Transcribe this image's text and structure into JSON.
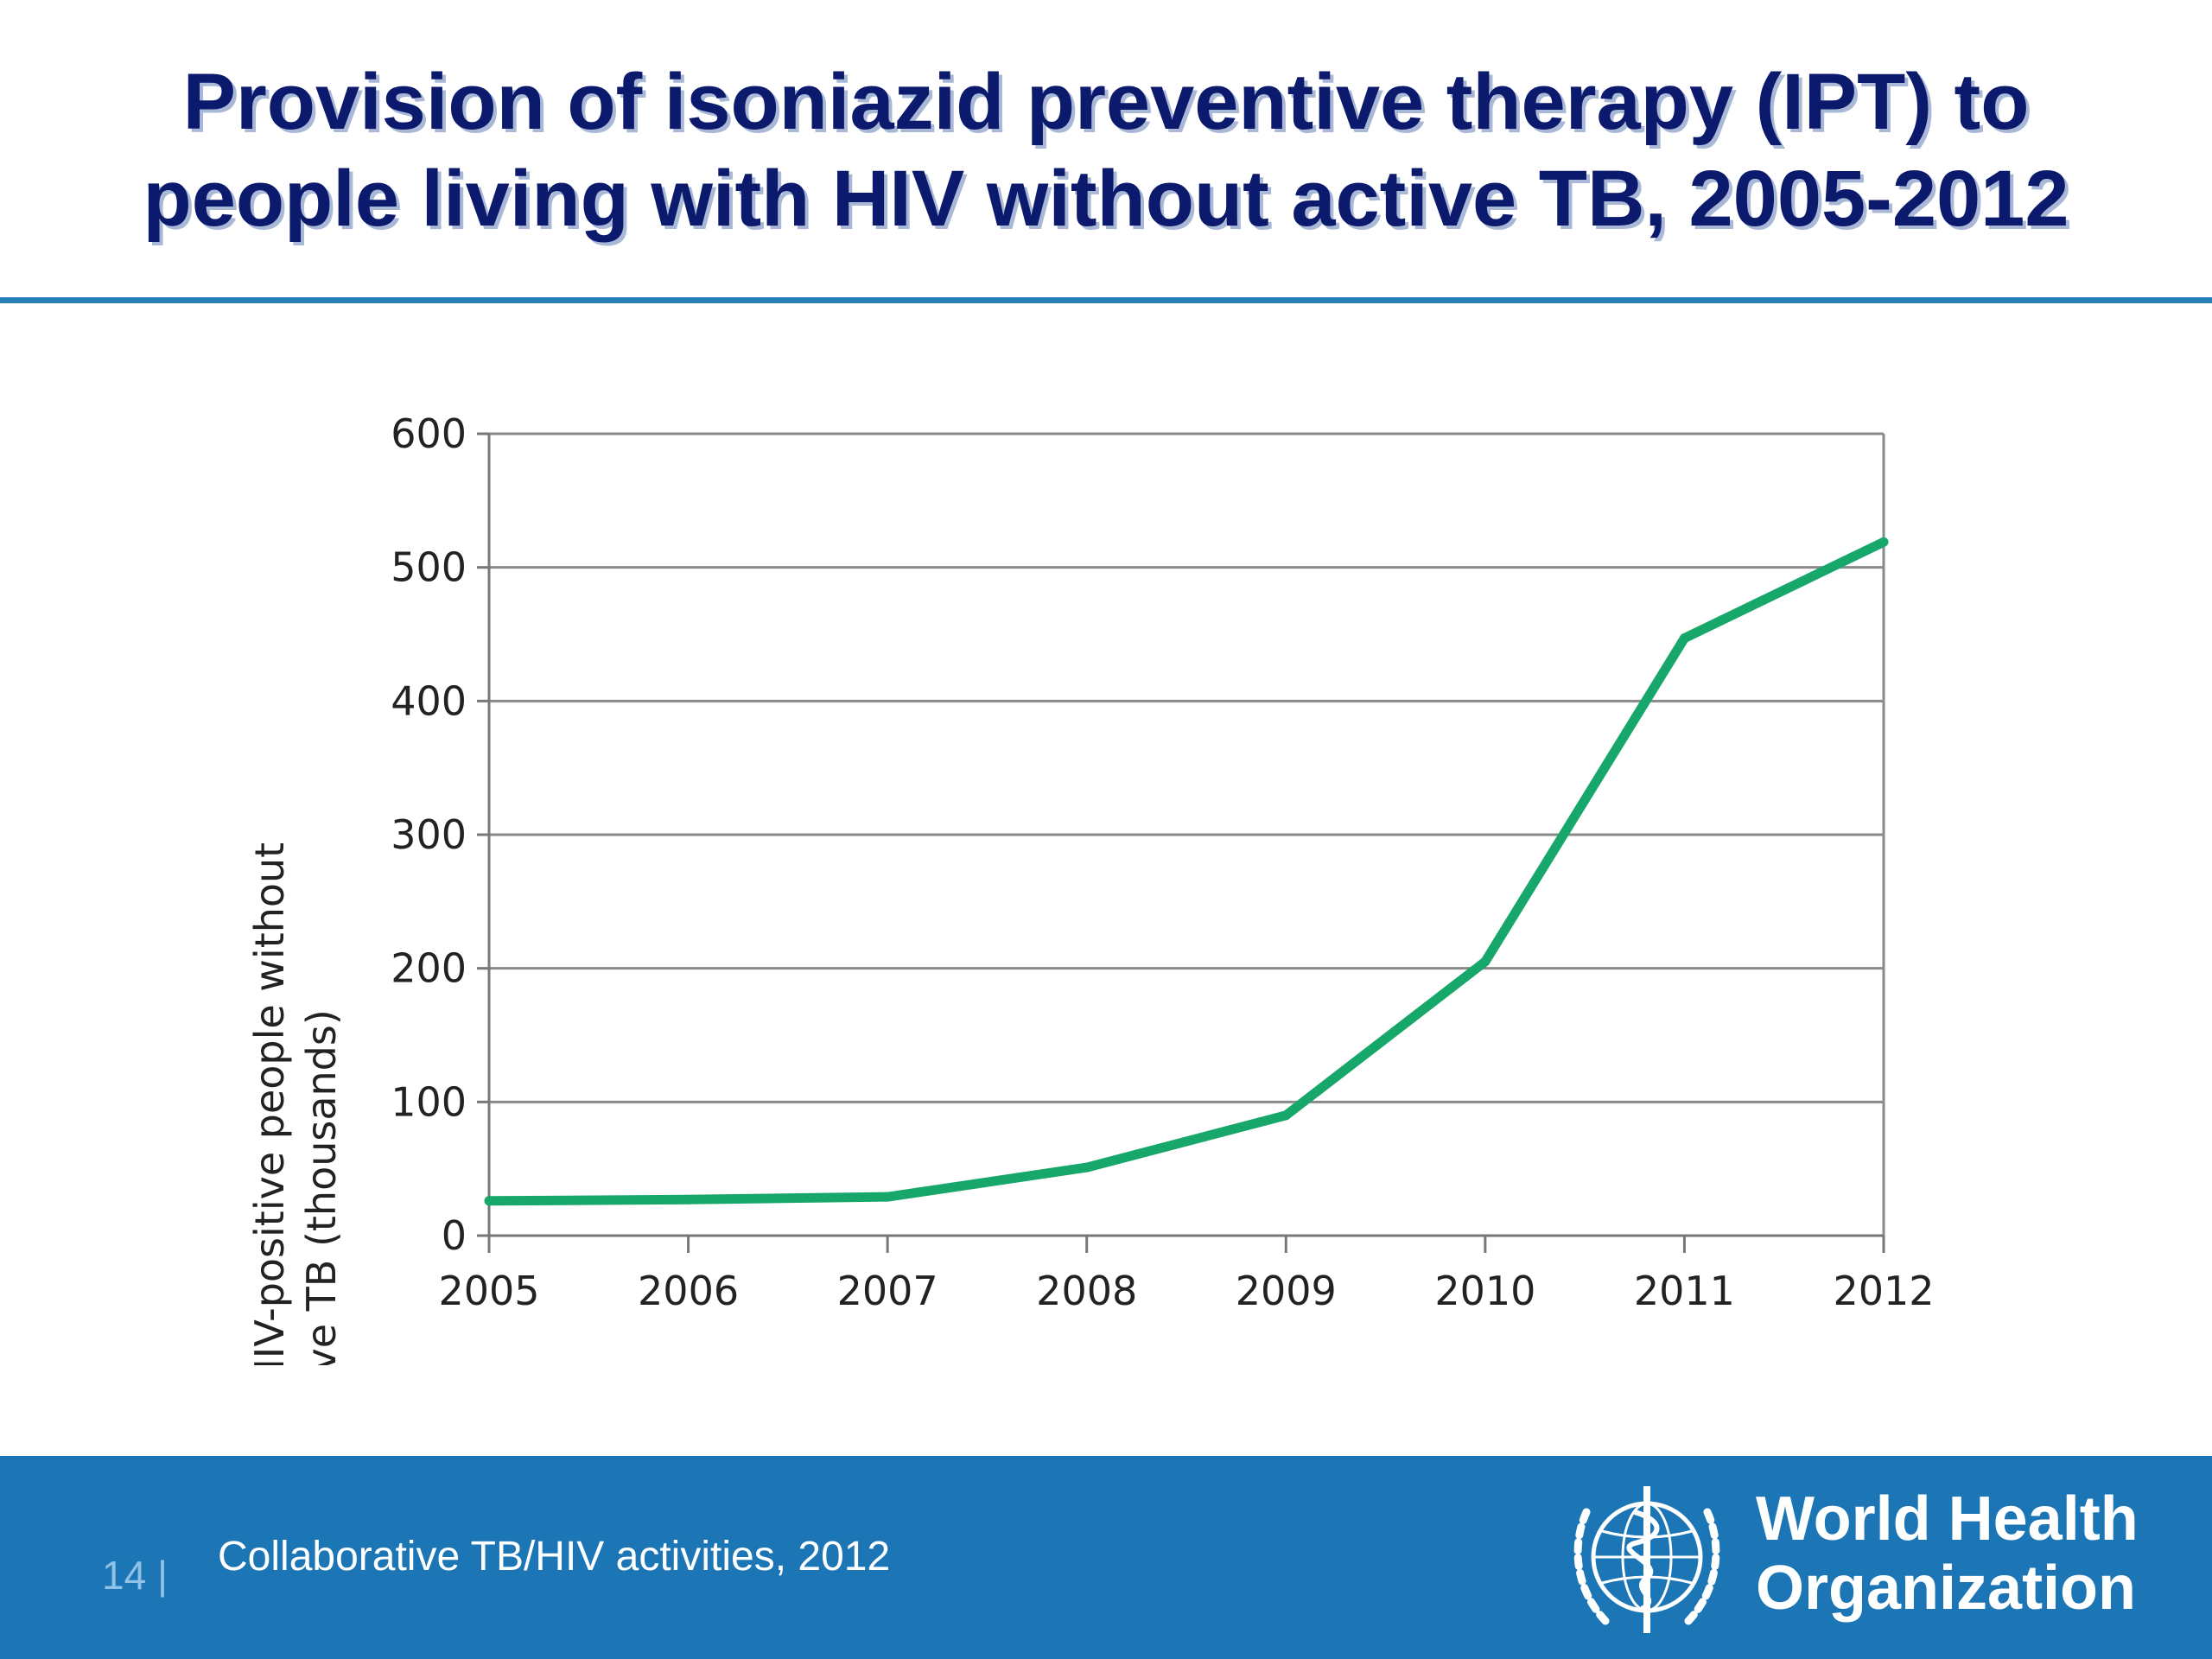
{
  "slide": {
    "title_line1": "Provision of isoniazid preventive therapy (IPT) to",
    "title_line2": "people living with HIV without active TB, 2005-2012"
  },
  "footer": {
    "page_number": "14 |",
    "source": "Collaborative TB/HIV activities, 2012",
    "org_name_line1": "World Health",
    "org_name_line2": "Organization"
  },
  "colors": {
    "title": "#0c1a6e",
    "rule": "#2a7fb8",
    "footer": "#1c76b6",
    "line": "#18a76a"
  },
  "chart_data": {
    "type": "line",
    "title": "",
    "xlabel": "",
    "ylabel_line1": "Number of HIV-positive people without",
    "ylabel_line2": "active TB (thousands)",
    "x": [
      "2005",
      "2006",
      "2007",
      "2008",
      "2009",
      "2010",
      "2011",
      "2012"
    ],
    "series": [
      {
        "values": [
          26,
          27,
          29,
          51,
          90,
          205,
          447,
          519
        ]
      }
    ],
    "ylim": [
      0,
      600
    ],
    "yticks": [
      "0",
      "100",
      "200",
      "300",
      "400",
      "500",
      "600"
    ],
    "grid": true,
    "legend": "none"
  }
}
